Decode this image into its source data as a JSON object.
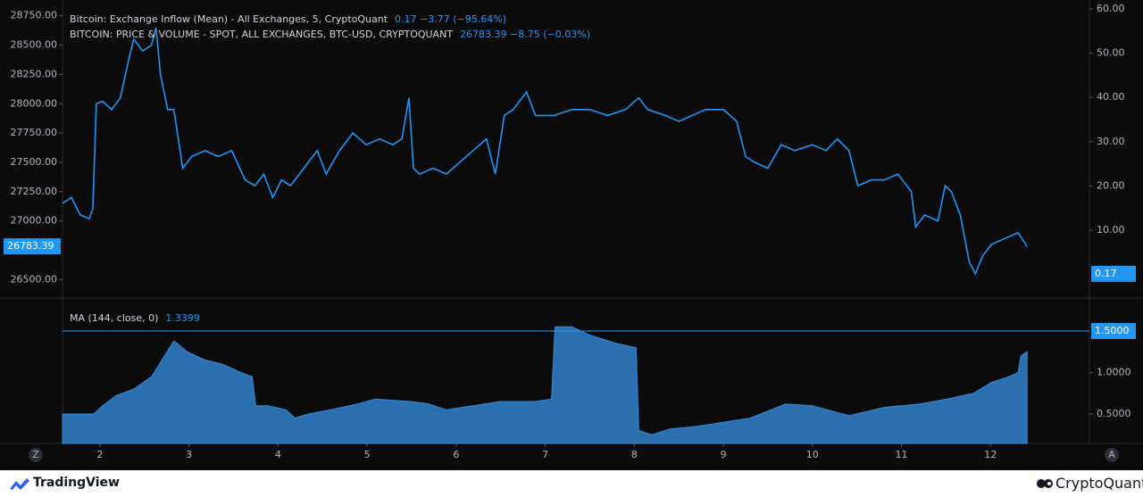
{
  "chart_data": [
    {
      "type": "line",
      "legend": [
        {
          "name": "Bitcoin: Exchange Inflow (Mean) - All Exchanges, 5, CryptoQuant",
          "readout": "0.17  −3.77 (−95.64%)"
        },
        {
          "name": "BITCOIN: PRICE & VOLUME - SPOT, ALL EXCHANGES, BTC-USD, CRYPTOQUANT",
          "readout": "26783.39  −8.75 (−0.03%)"
        }
      ],
      "x": [
        1.58,
        1.68,
        1.78,
        1.88,
        1.92,
        1.96,
        2.03,
        2.13,
        2.23,
        2.33,
        2.38,
        2.48,
        2.58,
        2.63,
        2.68,
        2.76,
        2.83,
        2.88,
        2.93,
        3.03,
        3.18,
        3.33,
        3.48,
        3.63,
        3.74,
        3.84,
        3.94,
        4.04,
        4.14,
        4.29,
        4.44,
        4.54,
        4.69,
        4.84,
        4.99,
        5.14,
        5.29,
        5.39,
        5.47,
        5.52,
        5.59,
        5.74,
        5.89,
        6.04,
        6.19,
        6.34,
        6.44,
        6.54,
        6.64,
        6.79,
        6.89,
        7.1,
        7.3,
        7.5,
        7.7,
        7.9,
        8.05,
        8.15,
        8.35,
        8.5,
        8.65,
        8.8,
        9.0,
        9.15,
        9.25,
        9.35,
        9.5,
        9.65,
        9.8,
        10.0,
        10.15,
        10.28,
        10.41,
        10.51,
        10.66,
        10.81,
        10.96,
        11.06,
        11.11,
        11.16,
        11.26,
        11.41,
        11.49,
        11.56,
        11.66,
        11.76,
        11.83,
        11.91,
        12.01,
        12.16,
        12.31,
        12.41
      ],
      "series": [
        {
          "name": "BTC price",
          "color": "#2196f3",
          "values": [
            27150,
            27200,
            27050,
            27020,
            27100,
            28000,
            28020,
            27950,
            28050,
            28400,
            28550,
            28450,
            28500,
            28650,
            28250,
            27950,
            27950,
            27700,
            27450,
            27550,
            27600,
            27550,
            27600,
            27350,
            27300,
            27400,
            27200,
            27350,
            27300,
            27450,
            27600,
            27400,
            27600,
            27750,
            27650,
            27700,
            27650,
            27700,
            28050,
            27450,
            27400,
            27450,
            27400,
            27500,
            27600,
            27700,
            27400,
            27900,
            27950,
            28100,
            27900,
            27900,
            27950,
            27950,
            27900,
            27950,
            28050,
            27950,
            27900,
            27850,
            27900,
            27950,
            27950,
            27850,
            27550,
            27500,
            27450,
            27650,
            27600,
            27650,
            27600,
            27700,
            27600,
            27300,
            27350,
            27350,
            27400,
            27300,
            27250,
            26950,
            27050,
            27000,
            27300,
            27250,
            27050,
            26650,
            26550,
            26700,
            26800,
            26850,
            26900,
            26780
          ]
        }
      ],
      "xlim": [
        1.58,
        13.11
      ],
      "ylim": [
        26350,
        28885
      ],
      "yticks": [
        {
          "value": 26500,
          "label": "26500.00"
        },
        {
          "value": 27000,
          "label": "27000.00"
        },
        {
          "value": 27250,
          "label": "27250.00"
        },
        {
          "value": 27500,
          "label": "27500.00"
        },
        {
          "value": 27750,
          "label": "27750.00"
        },
        {
          "value": 28000,
          "label": "28000.00"
        },
        {
          "value": 28250,
          "label": "28250.00"
        },
        {
          "value": 28500,
          "label": "28500.00"
        },
        {
          "value": 28750,
          "label": "28750.00"
        }
      ],
      "last_price": {
        "value": 26783.39,
        "label": "26783.39"
      },
      "y2lim": [
        -5.1,
        62
      ],
      "y2ticks": [
        {
          "value": 10,
          "label": "10.00"
        },
        {
          "value": 20,
          "label": "20.00"
        },
        {
          "value": 30,
          "label": "30.00"
        },
        {
          "value": 40,
          "label": "40.00"
        },
        {
          "value": 50,
          "label": "50.00"
        },
        {
          "value": 60,
          "label": "60.00"
        }
      ],
      "last_inflow": {
        "value": 0.17,
        "label": "0.17"
      }
    },
    {
      "type": "area",
      "legend": [
        {
          "name": "MA (144, close, 0)",
          "readout": "1.3399"
        }
      ],
      "x": [
        1.58,
        1.93,
        2.03,
        2.18,
        2.38,
        2.58,
        2.83,
        2.98,
        3.18,
        3.38,
        3.58,
        3.71,
        3.75,
        3.89,
        4.09,
        4.19,
        4.34,
        4.59,
        4.89,
        5.09,
        5.49,
        5.69,
        5.89,
        6.19,
        6.49,
        6.89,
        7.07,
        7.11,
        7.19,
        7.3,
        7.5,
        7.8,
        8.02,
        8.05,
        8.2,
        8.4,
        8.7,
        9.0,
        9.3,
        9.7,
        10.0,
        10.41,
        10.81,
        11.21,
        11.51,
        11.81,
        12.01,
        12.21,
        12.31,
        12.34,
        12.41
      ],
      "series": [
        {
          "name": "MA",
          "color": "#2a6fb0",
          "values": [
            0.5,
            0.5,
            0.6,
            0.72,
            0.8,
            0.95,
            1.38,
            1.25,
            1.15,
            1.1,
            1.0,
            0.95,
            0.6,
            0.6,
            0.55,
            0.45,
            0.5,
            0.55,
            0.62,
            0.68,
            0.65,
            0.62,
            0.55,
            0.6,
            0.65,
            0.65,
            0.68,
            1.55,
            1.55,
            1.55,
            1.45,
            1.35,
            1.3,
            0.3,
            0.25,
            0.32,
            0.35,
            0.4,
            0.45,
            0.62,
            0.6,
            0.48,
            0.58,
            0.62,
            0.68,
            0.75,
            0.88,
            0.95,
            1.0,
            1.2,
            1.25
          ]
        }
      ],
      "xlim": [
        1.58,
        13.11
      ],
      "ylim": [
        0.145,
        1.887
      ],
      "y2ticks": [
        {
          "value": 0.5,
          "label": "0.5000"
        },
        {
          "value": 1,
          "label": "1.0000"
        }
      ],
      "hline": {
        "value": 1.5,
        "label": "1.5000"
      },
      "xticks": [
        2,
        3,
        4,
        5,
        6,
        7,
        8,
        9,
        10,
        11,
        12
      ]
    }
  ],
  "axis_buttons": [
    "Z",
    "A"
  ],
  "footer": {
    "left": "TradingView",
    "right": "CryptoQuant"
  }
}
